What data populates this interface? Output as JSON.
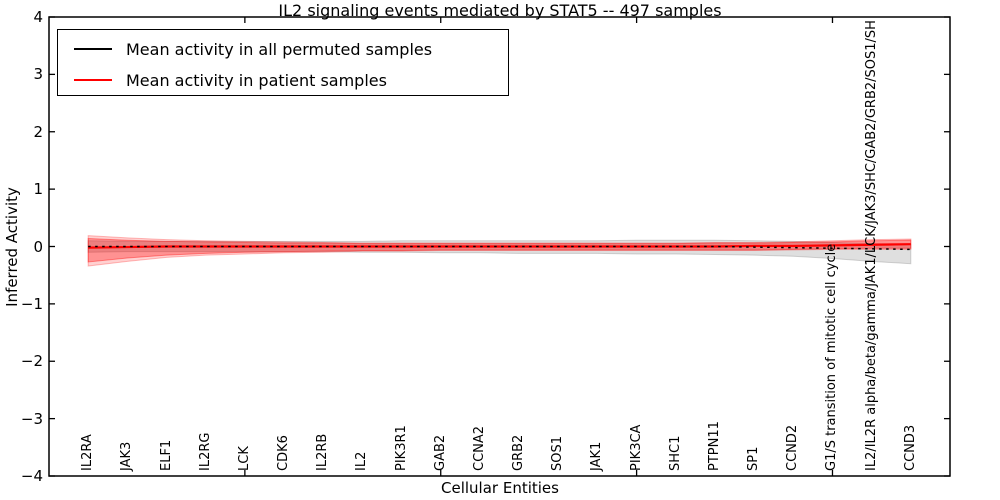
{
  "chart_data": {
    "type": "line",
    "title": "IL2 signaling events mediated by STAT5 -- 497 samples",
    "xlabel": "Cellular Entities",
    "ylabel": "Inferred Activity",
    "ylim": [
      -4,
      4
    ],
    "xlim": [
      0,
      23
    ],
    "yticks": [
      -4,
      -3,
      -2,
      -1,
      0,
      1,
      2,
      3,
      4
    ],
    "xticks_unlabeled": [
      5,
      10,
      15,
      20
    ],
    "grid": false,
    "legend_position": "upper-left",
    "categories": [
      "IL2RA",
      "JAK3",
      "ELF1",
      "IL2RG",
      "LCK",
      "CDK6",
      "IL2RB",
      "IL2",
      "PIK3R1",
      "GAB2",
      "CCNA2",
      "GRB2",
      "SOS1",
      "JAK1",
      "PIK3CA",
      "SHC1",
      "PTPN11",
      "SP1",
      "CCND2",
      "G1/S transition of mitotic cell cycle",
      "IL2/IL2R alpha/beta/gamma/JAK1/LCK/JAK3/SHC/GAB2/GRB2/SOS1/SH",
      "CCND3"
    ],
    "series": [
      {
        "name": "Mean activity in all permuted samples",
        "color": "#000000",
        "values": [
          0,
          0,
          0,
          0,
          0,
          0,
          0,
          0,
          0,
          0,
          0,
          0,
          0,
          0,
          0,
          0,
          0,
          -0.01,
          -0.02,
          -0.03,
          -0.04,
          -0.05
        ]
      },
      {
        "name": "Mean activity in patient samples",
        "color": "#ff0000",
        "values": [
          -0.02,
          -0.01,
          0,
          0,
          0,
          0,
          0,
          0,
          0,
          0,
          0,
          0,
          0,
          0,
          0,
          0,
          0,
          0.01,
          0.01,
          0.02,
          0.03,
          0.04
        ]
      }
    ],
    "bands": [
      {
        "name": "permuted-std",
        "color": "#808080",
        "alpha": 0.25,
        "upper": [
          0.1,
          0.09,
          0.09,
          0.09,
          0.09,
          0.09,
          0.09,
          0.09,
          0.1,
          0.1,
          0.1,
          0.1,
          0.1,
          0.1,
          0.11,
          0.11,
          0.11,
          0.1,
          0.09,
          0.07,
          0.05,
          0.04
        ],
        "lower": [
          -0.1,
          -0.09,
          -0.09,
          -0.09,
          -0.09,
          -0.09,
          -0.09,
          -0.1,
          -0.1,
          -0.11,
          -0.11,
          -0.12,
          -0.12,
          -0.12,
          -0.13,
          -0.13,
          -0.14,
          -0.15,
          -0.17,
          -0.21,
          -0.26,
          -0.3
        ]
      },
      {
        "name": "patient-std-outer",
        "color": "#ff0000",
        "alpha": 0.18,
        "upper": [
          0.19,
          0.15,
          0.12,
          0.1,
          0.09,
          0.08,
          0.07,
          0.06,
          0.06,
          0.06,
          0.06,
          0.06,
          0.06,
          0.06,
          0.06,
          0.06,
          0.07,
          0.07,
          0.08,
          0.1,
          0.12,
          0.13
        ],
        "lower": [
          -0.34,
          -0.26,
          -0.19,
          -0.15,
          -0.13,
          -0.11,
          -0.1,
          -0.08,
          -0.08,
          -0.07,
          -0.07,
          -0.07,
          -0.07,
          -0.07,
          -0.07,
          -0.07,
          -0.07,
          -0.07,
          -0.06,
          -0.05,
          -0.05,
          -0.05
        ]
      },
      {
        "name": "patient-std",
        "color": "#ff0000",
        "alpha": 0.3,
        "upper": [
          0.14,
          0.11,
          0.09,
          0.08,
          0.07,
          0.06,
          0.06,
          0.05,
          0.05,
          0.05,
          0.05,
          0.05,
          0.05,
          0.05,
          0.05,
          0.05,
          0.06,
          0.06,
          0.07,
          0.08,
          0.1,
          0.11
        ],
        "lower": [
          -0.27,
          -0.2,
          -0.15,
          -0.12,
          -0.1,
          -0.09,
          -0.08,
          -0.07,
          -0.07,
          -0.06,
          -0.06,
          -0.06,
          -0.06,
          -0.06,
          -0.06,
          -0.06,
          -0.06,
          -0.06,
          -0.05,
          -0.04,
          -0.03,
          -0.03
        ]
      }
    ]
  },
  "colors": {
    "axis": "#000000",
    "background": "#ffffff",
    "permuted_line": "#000000",
    "patient_line": "#ff0000"
  }
}
